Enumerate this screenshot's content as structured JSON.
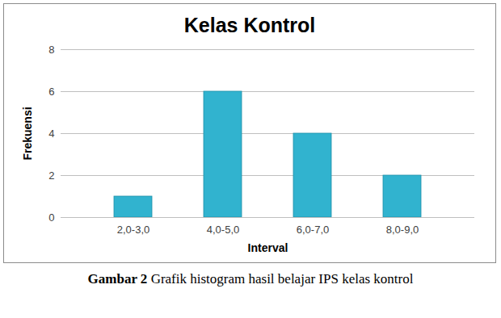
{
  "chart_data": {
    "type": "bar",
    "title": "Kelas Kontrol",
    "x_label": "Interval",
    "y_label": "Frekuensi",
    "categories": [
      "2,0-3,0",
      "4,0-5,0",
      "6,0-7,0",
      "8,0-9,0"
    ],
    "values": [
      1,
      6,
      4,
      2
    ],
    "color": "#31b3cf",
    "ylim": [
      0,
      8
    ],
    "yticks": [
      0,
      2,
      4,
      6,
      8
    ],
    "grid": true,
    "caption": {
      "label": "Gambar 2",
      "text": "Grafik histogram hasil belajar IPS kelas kontrol"
    }
  }
}
